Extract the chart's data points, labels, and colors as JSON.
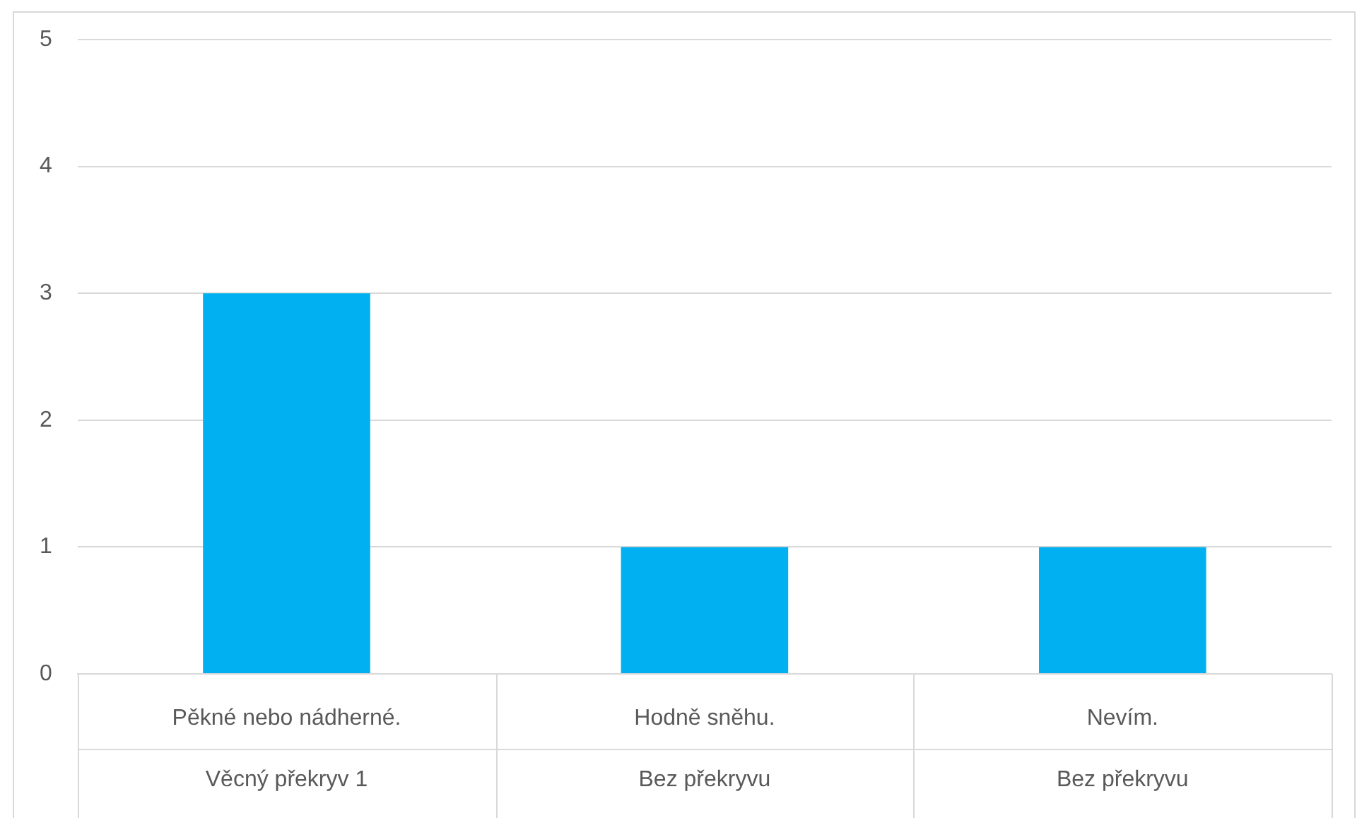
{
  "chart_data": {
    "type": "bar",
    "categories": [
      "Pěkné nebo nádherné.",
      "Hodně sněhu.",
      "Nevím."
    ],
    "values": [
      3,
      1,
      1
    ],
    "color": "#00b0f0",
    "ylim": [
      0,
      5
    ],
    "yticks": [
      0,
      1,
      2,
      3,
      4,
      5
    ],
    "grid": "y",
    "legend": false,
    "annotations": [
      "Věcný překryv 1",
      "Bez překryvu",
      "Bez překryvu"
    ]
  }
}
